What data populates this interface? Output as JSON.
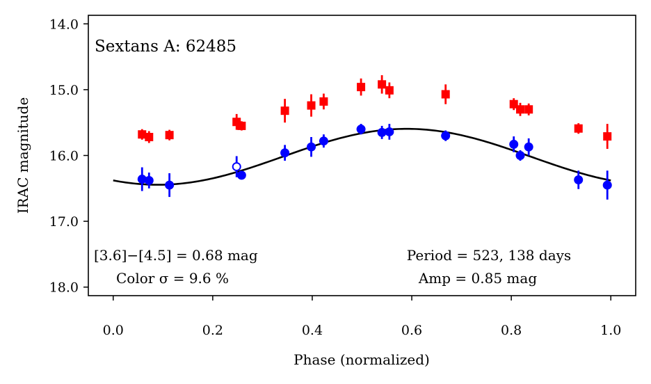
{
  "chart_data": {
    "type": "scatter",
    "title": "Sextans A: 62485",
    "xlabel": "Phase (normalized)",
    "ylabel": "IRAC magnitude",
    "xlim": [
      -0.05,
      1.05
    ],
    "ylim": [
      18.13,
      13.87
    ],
    "y_inverted": true,
    "grid": false,
    "x_ticks": [
      0.0,
      0.2,
      0.4,
      0.6,
      0.8,
      1.0
    ],
    "x_tick_labels": [
      "0.0",
      "0.2",
      "0.4",
      "0.6",
      "0.8",
      "1.0"
    ],
    "y_ticks": [
      14.0,
      15.0,
      16.0,
      17.0,
      18.0
    ],
    "y_tick_labels": [
      "14.0",
      "15.0",
      "16.0",
      "17.0",
      "18.0"
    ],
    "annotations": {
      "color_index": "[3.6]−[4.5] = 0.68 mag",
      "color_sigma": "Color σ = 9.6 %",
      "period": "Period = 523, 138 days",
      "amplitude": "Amp = 0.85 mag"
    },
    "series": [
      {
        "name": "[4.5] (red squares)",
        "color": "#ff0000",
        "marker": "square",
        "points": [
          {
            "x": 0.058,
            "y": 15.68,
            "err": 0.08
          },
          {
            "x": 0.072,
            "y": 15.72,
            "err": 0.09
          },
          {
            "x": 0.113,
            "y": 15.69,
            "err": 0.08
          },
          {
            "x": 0.248,
            "y": 15.49,
            "err": 0.12
          },
          {
            "x": 0.258,
            "y": 15.55,
            "err": 0.07
          },
          {
            "x": 0.345,
            "y": 15.32,
            "err": 0.18
          },
          {
            "x": 0.398,
            "y": 15.24,
            "err": 0.17
          },
          {
            "x": 0.423,
            "y": 15.18,
            "err": 0.12
          },
          {
            "x": 0.498,
            "y": 14.96,
            "err": 0.13
          },
          {
            "x": 0.54,
            "y": 14.92,
            "err": 0.14
          },
          {
            "x": 0.555,
            "y": 15.01,
            "err": 0.12
          },
          {
            "x": 0.668,
            "y": 15.07,
            "err": 0.15
          },
          {
            "x": 0.805,
            "y": 15.22,
            "err": 0.09
          },
          {
            "x": 0.818,
            "y": 15.3,
            "err": 0.1
          },
          {
            "x": 0.835,
            "y": 15.3,
            "err": 0.09
          },
          {
            "x": 0.935,
            "y": 15.59,
            "err": 0.08
          },
          {
            "x": 0.993,
            "y": 15.71,
            "err": 0.19
          }
        ]
      },
      {
        "name": "[3.6] (blue circles)",
        "color": "#0000ff",
        "marker": "circle",
        "points": [
          {
            "x": 0.058,
            "y": 16.36,
            "err": 0.18
          },
          {
            "x": 0.072,
            "y": 16.38,
            "err": 0.12
          },
          {
            "x": 0.113,
            "y": 16.45,
            "err": 0.18
          },
          {
            "x": 0.248,
            "y": 16.17,
            "err": 0.16,
            "open": true
          },
          {
            "x": 0.258,
            "y": 16.3,
            "err": 0.05
          },
          {
            "x": 0.345,
            "y": 15.96,
            "err": 0.12
          },
          {
            "x": 0.398,
            "y": 15.87,
            "err": 0.15
          },
          {
            "x": 0.423,
            "y": 15.78,
            "err": 0.1
          },
          {
            "x": 0.498,
            "y": 15.6,
            "err": 0.08
          },
          {
            "x": 0.54,
            "y": 15.65,
            "err": 0.1
          },
          {
            "x": 0.555,
            "y": 15.64,
            "err": 0.12
          },
          {
            "x": 0.668,
            "y": 15.7,
            "err": 0.08
          },
          {
            "x": 0.805,
            "y": 15.83,
            "err": 0.12
          },
          {
            "x": 0.818,
            "y": 16.0,
            "err": 0.08
          },
          {
            "x": 0.835,
            "y": 15.87,
            "err": 0.13
          },
          {
            "x": 0.935,
            "y": 16.37,
            "err": 0.14
          },
          {
            "x": 0.993,
            "y": 16.45,
            "err": 0.22
          }
        ]
      }
    ],
    "model_curve": {
      "name": "sinusoid fit",
      "color": "#000000",
      "mean": 16.02,
      "amplitude": 0.425,
      "peak_phase": 0.59,
      "x_range": [
        0.0,
        1.0
      ]
    }
  }
}
